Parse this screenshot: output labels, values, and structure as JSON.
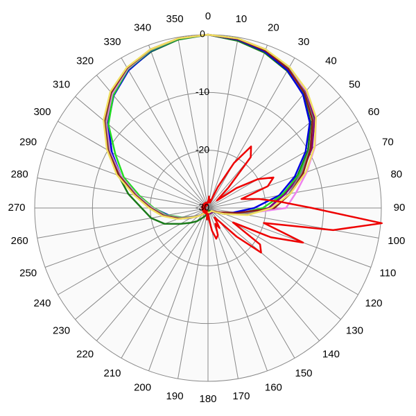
{
  "chart_data": {
    "type": "polar",
    "x": [
      0,
      10,
      20,
      30,
      40,
      50,
      60,
      70,
      80,
      90,
      100,
      110,
      120,
      130,
      140,
      150,
      160,
      170,
      180,
      190,
      200,
      210,
      220,
      230,
      240,
      250,
      260,
      270,
      280,
      290,
      300,
      310,
      320,
      330,
      340,
      350
    ],
    "xticks": [
      0,
      10,
      20,
      30,
      40,
      50,
      60,
      70,
      80,
      90,
      100,
      110,
      120,
      130,
      140,
      150,
      160,
      170,
      180,
      190,
      200,
      210,
      220,
      230,
      240,
      250,
      260,
      270,
      280,
      290,
      300,
      310,
      320,
      330,
      340,
      350
    ],
    "ylim": [
      -30,
      0
    ],
    "yticks": [
      -30,
      -20,
      -10,
      0
    ],
    "grid": true,
    "series": [
      {
        "color": "#1a7a1a",
        "values": [
          0,
          -0.6,
          -1.4,
          -2.6,
          -4.3,
          -6.8,
          -10,
          -13.5,
          -16.8,
          -19.5,
          -23.5,
          -27,
          -28.5,
          -29,
          -29,
          -29.5,
          -29.5,
          -29.5,
          -29.5,
          -29,
          -28.5,
          -28,
          -27,
          -26,
          -24.5,
          -22,
          -20,
          -18.5,
          -16,
          -13.5,
          -10.5,
          -7.2,
          -4.5,
          -2.4,
          -1.2,
          -0.4
        ]
      },
      {
        "color": "#0000e0",
        "values": [
          0,
          -0.4,
          -1.2,
          -2.5,
          -4.4,
          -7,
          -10.5,
          -14,
          -17.5,
          -22,
          -25.5,
          -27.5,
          -28.5,
          -29,
          -29,
          -29,
          -29,
          -29,
          -29,
          -29,
          -29,
          -29,
          -28.5,
          -28,
          -26.5,
          -24.5,
          -23,
          -20.5,
          -17.5,
          -14,
          -10.8,
          -7.4,
          -4.6,
          -2.5,
          -1.1,
          -0.3
        ]
      },
      {
        "color": "#22dd22",
        "values": [
          0,
          -0.2,
          -0.9,
          -2,
          -3.7,
          -6.2,
          -9.6,
          -13.2,
          -17,
          -20.5,
          -24.5,
          -27.5,
          -28.8,
          -29.2,
          -29.2,
          -29.2,
          -29.2,
          -29.2,
          -29.2,
          -29.2,
          -29.2,
          -29,
          -28.6,
          -28,
          -27,
          -25.2,
          -22.8,
          -20.6,
          -18,
          -14.5,
          -11.5,
          -7.5,
          -4.5,
          -2.3,
          -1,
          -0.3
        ]
      },
      {
        "color": "#800080",
        "values": [
          0,
          -0.2,
          -0.8,
          -1.9,
          -3.6,
          -5.9,
          -9.2,
          -12.8,
          -16.5,
          -19.5,
          -23.5,
          -27,
          -28.6,
          -29,
          -29,
          -29,
          -29,
          -29,
          -29,
          -29,
          -29,
          -29,
          -28.6,
          -28,
          -27,
          -25,
          -22.5,
          -20.2,
          -17.4,
          -13.8,
          -10.2,
          -6.8,
          -4,
          -2.1,
          -0.9,
          -0.2
        ]
      },
      {
        "color": "#ee82ee",
        "values": [
          0,
          -0.3,
          -0.9,
          -2,
          -3.5,
          -5.6,
          -8.6,
          -11.8,
          -14.5,
          -16.5,
          -24,
          -27.5,
          -28.8,
          -29.2,
          -29.2,
          -29.2,
          -29.2,
          -29.2,
          -29.2,
          -29.2,
          -29.2,
          -29,
          -28.6,
          -28,
          -27,
          -25,
          -22.6,
          -20.4,
          -17.6,
          -14,
          -10.4,
          -7,
          -4.2,
          -2.2,
          -0.9,
          -0.2
        ]
      },
      {
        "color": "#888888",
        "values": [
          0,
          -0.3,
          -1,
          -2.1,
          -3.9,
          -6.3,
          -9.6,
          -12.9,
          -15.8,
          -18.5,
          -24,
          -27.5,
          -28.8,
          -29.2,
          -29.2,
          -29.2,
          -29.2,
          -29.2,
          -29.2,
          -29.2,
          -29.2,
          -29,
          -28.6,
          -28,
          -27,
          -25,
          -22.5,
          -20.2,
          -17.4,
          -13.8,
          -10.2,
          -6.8,
          -4,
          -2.1,
          -0.9,
          -0.2
        ]
      },
      {
        "color": "#8b1a1a",
        "values": [
          0,
          -0.3,
          -1,
          -2.2,
          -4,
          -6.4,
          -9.5,
          -12.5,
          -15.5,
          -18.5,
          -25,
          -27.8,
          -28.8,
          -29.2,
          -29.2,
          -29.2,
          -29.2,
          -29.2,
          -29.2,
          -29.2,
          -29.2,
          -29,
          -28.6,
          -27.8,
          -26.6,
          -24.6,
          -22.2,
          -20,
          -17.2,
          -13.6,
          -10,
          -6.6,
          -3.9,
          -2,
          -0.8,
          -0.2
        ]
      },
      {
        "color": "#f0e060",
        "values": [
          0,
          -0.2,
          -0.8,
          -1.8,
          -3.4,
          -5.6,
          -8.7,
          -12,
          -15.5,
          -19,
          -23,
          -27,
          -28.6,
          -29.2,
          -29.2,
          -29.2,
          -29.2,
          -29.2,
          -29.2,
          -29.2,
          -29.2,
          -29,
          -28.6,
          -27.8,
          -26.6,
          -24.4,
          -22,
          -19.8,
          -17,
          -13.2,
          -9.8,
          -6.4,
          -3.7,
          -1.9,
          -0.8,
          -0.2
        ]
      },
      {
        "color": "#ee0000",
        "x": [
          0,
          5,
          10,
          15,
          20,
          25,
          30,
          35,
          40,
          45,
          50,
          55,
          60,
          65,
          70,
          75,
          80,
          85,
          90,
          95,
          100,
          105,
          110,
          115,
          120,
          125,
          130,
          135,
          140,
          145,
          150,
          155,
          160,
          165,
          170,
          175,
          180,
          185,
          190,
          195,
          200,
          205,
          210,
          215,
          220,
          225,
          230,
          235,
          240,
          245,
          250,
          255,
          260,
          265,
          270,
          275,
          280,
          285,
          290,
          295,
          300,
          305,
          310,
          315,
          320,
          325,
          330,
          335,
          340,
          345,
          350,
          355
        ],
        "values": [
          -29,
          -28,
          -29,
          -28.5,
          -29,
          -26,
          -21,
          -17,
          -18.5,
          -25,
          -28,
          -24,
          -20,
          -17.5,
          -19,
          -24,
          -21,
          -17.5,
          -12,
          0.2,
          -8,
          -20,
          -12.5,
          -18,
          -25,
          -19,
          -18,
          -23,
          -27,
          -28,
          -26,
          -27,
          -25,
          -24.5,
          -26,
          -28,
          -29,
          -28,
          -29,
          -29,
          -29.5,
          -29,
          -29.5,
          -29,
          -29.5,
          -29,
          -29.5,
          -29,
          -29.5,
          -29,
          -29.5,
          -29,
          -29.5,
          -29,
          -29.5,
          -29,
          -29.5,
          -29,
          -29.5,
          -29,
          -29.5,
          -29,
          -29.5,
          -29,
          -29.5,
          -29,
          -29.5,
          -29,
          -29.5,
          -29,
          -29.5,
          -29
        ]
      }
    ]
  }
}
